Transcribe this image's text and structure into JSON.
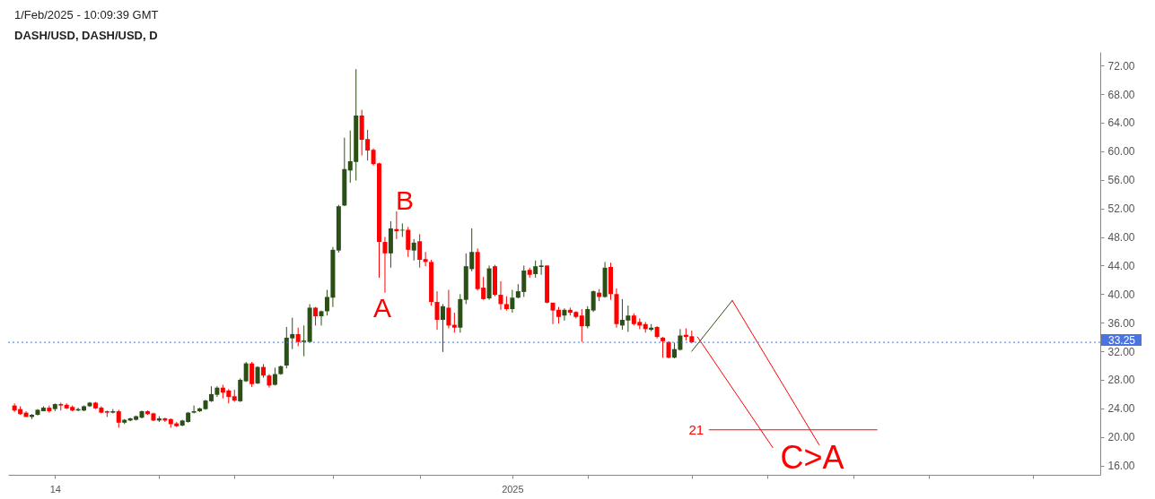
{
  "chart_data": {
    "type": "candlestick",
    "title": "DASH/USD, DASH/USD, D",
    "x": [
      "2024-10-07",
      "2024-10-08",
      "2024-10-09",
      "2024-10-10",
      "2024-10-11",
      "2024-10-12",
      "2024-10-13",
      "2024-10-14",
      "2024-10-15",
      "2024-10-16",
      "2024-10-17",
      "2024-10-18",
      "2024-10-19",
      "2024-10-20",
      "2024-10-21",
      "2024-10-22",
      "2024-10-23",
      "2024-10-24",
      "2024-10-25",
      "2024-10-26",
      "2024-10-27",
      "2024-10-28",
      "2024-10-29",
      "2024-10-30",
      "2024-10-31",
      "2024-11-01",
      "2024-11-02",
      "2024-11-03",
      "2024-11-04",
      "2024-11-05",
      "2024-11-06",
      "2024-11-07",
      "2024-11-08",
      "2024-11-09",
      "2024-11-10",
      "2024-11-11",
      "2024-11-12",
      "2024-11-13",
      "2024-11-14",
      "2024-11-15",
      "2024-11-16",
      "2024-11-17",
      "2024-11-18",
      "2024-11-19",
      "2024-11-20",
      "2024-11-21",
      "2024-11-22",
      "2024-11-23",
      "2024-11-24",
      "2024-11-25",
      "2024-11-26",
      "2024-11-27",
      "2024-11-28",
      "2024-11-29",
      "2024-11-30",
      "2024-12-01",
      "2024-12-02",
      "2024-12-03",
      "2024-12-04",
      "2024-12-05",
      "2024-12-06",
      "2024-12-07",
      "2024-12-08",
      "2024-12-09",
      "2024-12-10",
      "2024-12-11",
      "2024-12-12",
      "2024-12-13",
      "2024-12-14",
      "2024-12-15",
      "2024-12-16",
      "2024-12-17",
      "2024-12-18",
      "2024-12-19",
      "2024-12-20",
      "2024-12-21",
      "2024-12-22",
      "2024-12-23",
      "2024-12-24",
      "2024-12-25",
      "2024-12-26",
      "2024-12-27",
      "2024-12-28",
      "2024-12-29",
      "2024-12-30",
      "2024-12-31",
      "2025-01-01",
      "2025-01-02",
      "2025-01-03",
      "2025-01-04",
      "2025-01-05",
      "2025-01-06",
      "2025-01-07",
      "2025-01-08",
      "2025-01-09",
      "2025-01-10",
      "2025-01-11",
      "2025-01-12",
      "2025-01-13",
      "2025-01-14",
      "2025-01-15",
      "2025-01-16",
      "2025-01-17",
      "2025-01-18",
      "2025-01-19",
      "2025-01-20",
      "2025-01-21",
      "2025-01-22",
      "2025-01-23",
      "2025-01-24",
      "2025-01-25",
      "2025-01-26",
      "2025-01-27",
      "2025-01-28",
      "2025-01-29",
      "2025-01-30",
      "2025-01-31",
      "2025-02-01"
    ],
    "ohlc": [
      [
        24.4,
        24.7,
        23.5,
        23.7
      ],
      [
        23.9,
        24.3,
        23.1,
        23.2
      ],
      [
        23.4,
        23.6,
        22.8,
        22.8
      ],
      [
        22.8,
        23.2,
        22.5,
        23.1
      ],
      [
        23.1,
        23.9,
        23.0,
        23.8
      ],
      [
        23.6,
        24.3,
        23.6,
        24.1
      ],
      [
        24.1,
        24.4,
        23.4,
        23.6
      ],
      [
        23.9,
        24.7,
        23.6,
        24.6
      ],
      [
        24.6,
        24.8,
        23.7,
        24.4
      ],
      [
        24.5,
        24.7,
        23.9,
        24.0
      ],
      [
        24.2,
        24.4,
        23.6,
        23.7
      ],
      [
        23.7,
        24.1,
        23.6,
        23.9
      ],
      [
        23.7,
        24.4,
        23.6,
        24.3
      ],
      [
        24.3,
        24.9,
        24.2,
        24.8
      ],
      [
        24.8,
        24.9,
        23.9,
        24.0
      ],
      [
        24.1,
        24.3,
        23.3,
        23.4
      ],
      [
        23.6,
        23.7,
        22.8,
        23.4
      ],
      [
        23.4,
        23.9,
        23.3,
        23.6
      ],
      [
        23.6,
        23.8,
        21.3,
        22.0
      ],
      [
        22.0,
        22.5,
        21.8,
        22.4
      ],
      [
        22.3,
        22.7,
        22.2,
        22.6
      ],
      [
        22.4,
        23.0,
        22.3,
        22.9
      ],
      [
        22.7,
        23.7,
        22.6,
        23.6
      ],
      [
        23.6,
        23.7,
        23.1,
        23.2
      ],
      [
        23.3,
        23.4,
        22.2,
        22.3
      ],
      [
        22.3,
        22.9,
        22.1,
        22.6
      ],
      [
        22.6,
        22.7,
        22.1,
        22.3
      ],
      [
        22.5,
        22.6,
        21.3,
        21.8
      ],
      [
        21.9,
        22.1,
        21.4,
        21.5
      ],
      [
        21.6,
        22.4,
        21.5,
        22.3
      ],
      [
        22.1,
        23.5,
        22.0,
        23.4
      ],
      [
        23.4,
        24.4,
        23.3,
        23.6
      ],
      [
        23.6,
        24.1,
        23.5,
        24.0
      ],
      [
        23.9,
        25.2,
        23.8,
        25.1
      ],
      [
        25.0,
        27.1,
        24.9,
        26.0
      ],
      [
        25.9,
        27.1,
        25.6,
        26.9
      ],
      [
        26.9,
        27.3,
        25.4,
        26.2
      ],
      [
        26.5,
        26.7,
        24.7,
        25.6
      ],
      [
        25.7,
        26.6,
        24.9,
        25.1
      ],
      [
        25.0,
        28.2,
        24.9,
        28.0
      ],
      [
        27.8,
        30.5,
        27.7,
        30.3
      ],
      [
        30.3,
        30.5,
        27.0,
        27.4
      ],
      [
        27.5,
        29.9,
        27.4,
        29.8
      ],
      [
        29.8,
        30.2,
        28.3,
        28.6
      ],
      [
        28.6,
        28.8,
        26.9,
        27.2
      ],
      [
        27.3,
        29.7,
        27.2,
        28.8
      ],
      [
        28.8,
        30.0,
        28.7,
        29.9
      ],
      [
        30.0,
        35.4,
        29.6,
        33.9
      ],
      [
        33.8,
        36.7,
        32.3,
        34.4
      ],
      [
        34.4,
        35.3,
        32.7,
        33.3
      ],
      [
        33.3,
        35.6,
        31.3,
        33.5
      ],
      [
        33.3,
        38.6,
        33.2,
        38.1
      ],
      [
        38.1,
        38.2,
        35.6,
        36.9
      ],
      [
        36.9,
        37.7,
        35.6,
        37.6
      ],
      [
        37.6,
        40.6,
        37.0,
        39.6
      ],
      [
        39.5,
        46.6,
        38.2,
        46.2
      ],
      [
        46.1,
        52.5,
        45.8,
        52.3
      ],
      [
        52.4,
        61.9,
        52.3,
        57.5
      ],
      [
        57.3,
        62.9,
        55.6,
        58.6
      ],
      [
        58.5,
        71.5,
        55.9,
        65.0
      ],
      [
        65.0,
        65.8,
        59.4,
        61.6
      ],
      [
        61.7,
        63.0,
        58.7,
        60.1
      ],
      [
        60.2,
        60.4,
        58.0,
        58.2
      ],
      [
        58.3,
        58.4,
        42.3,
        47.3
      ],
      [
        47.3,
        48.0,
        40.2,
        45.7
      ],
      [
        45.7,
        50.2,
        43.7,
        49.2
      ],
      [
        49.1,
        51.6,
        47.7,
        48.8
      ],
      [
        48.9,
        49.9,
        48.0,
        49.0
      ],
      [
        49.0,
        49.4,
        45.2,
        46.2
      ],
      [
        46.1,
        47.7,
        44.7,
        47.2
      ],
      [
        47.4,
        48.4,
        43.7,
        44.8
      ],
      [
        44.9,
        45.9,
        43.9,
        44.5
      ],
      [
        44.5,
        44.8,
        38.4,
        38.9
      ],
      [
        38.9,
        40.4,
        35.0,
        36.4
      ],
      [
        36.4,
        38.6,
        31.9,
        38.3
      ],
      [
        38.1,
        40.6,
        35.2,
        35.6
      ],
      [
        35.7,
        37.4,
        34.6,
        35.3
      ],
      [
        35.3,
        40.0,
        34.6,
        39.3
      ],
      [
        39.2,
        45.7,
        38.6,
        43.9
      ],
      [
        43.5,
        49.2,
        43.2,
        45.9
      ],
      [
        45.9,
        46.4,
        40.5,
        40.7
      ],
      [
        40.9,
        42.4,
        39.2,
        39.3
      ],
      [
        39.4,
        44.0,
        39.2,
        43.6
      ],
      [
        43.9,
        44.1,
        39.7,
        39.9
      ],
      [
        39.9,
        41.8,
        37.8,
        38.6
      ],
      [
        38.6,
        39.7,
        37.7,
        37.9
      ],
      [
        37.9,
        40.6,
        37.4,
        39.5
      ],
      [
        39.5,
        41.4,
        39.4,
        40.4
      ],
      [
        40.3,
        44.0,
        39.6,
        43.3
      ],
      [
        43.4,
        43.7,
        42.3,
        42.7
      ],
      [
        42.8,
        44.7,
        42.3,
        43.9
      ],
      [
        43.8,
        44.8,
        42.7,
        44.0
      ],
      [
        44.0,
        44.0,
        38.7,
        38.8
      ],
      [
        38.8,
        38.8,
        35.8,
        37.7
      ],
      [
        37.8,
        38.2,
        35.9,
        36.8
      ],
      [
        37.0,
        38.0,
        36.3,
        37.8
      ],
      [
        37.8,
        38.1,
        37.0,
        37.4
      ],
      [
        37.5,
        37.6,
        36.6,
        36.8
      ],
      [
        37.0,
        37.9,
        33.3,
        35.5
      ],
      [
        35.5,
        38.3,
        35.2,
        37.9
      ],
      [
        37.7,
        40.5,
        37.5,
        40.4
      ],
      [
        40.2,
        40.7,
        39.0,
        39.6
      ],
      [
        39.6,
        44.5,
        39.5,
        43.7
      ],
      [
        43.8,
        44.4,
        39.2,
        40.0
      ],
      [
        40.0,
        40.8,
        35.3,
        35.8
      ],
      [
        35.6,
        39.3,
        35.0,
        36.4
      ],
      [
        36.3,
        38.4,
        34.7,
        37.0
      ],
      [
        37.0,
        37.3,
        35.6,
        35.8
      ],
      [
        36.1,
        36.6,
        35.1,
        35.6
      ],
      [
        35.8,
        36.1,
        34.6,
        35.1
      ],
      [
        35.0,
        35.8,
        34.8,
        35.3
      ],
      [
        35.4,
        35.5,
        33.8,
        34.0
      ],
      [
        33.9,
        34.0,
        31.1,
        33.4
      ],
      [
        33.3,
        33.4,
        31.0,
        31.1
      ],
      [
        31.1,
        33.2,
        31.0,
        32.3
      ],
      [
        32.2,
        35.1,
        32.1,
        34.2
      ],
      [
        34.3,
        35.2,
        33.5,
        34.0
      ],
      [
        34.1,
        34.9,
        33.1,
        33.25
      ]
    ],
    "colors": [
      "#ff0000",
      "#ff0000",
      "#ff0000",
      "#2b5016",
      "#2b5016",
      "#2b5016",
      "#ff0000",
      "#2b5016",
      "#ff0000",
      "#ff0000",
      "#ff0000",
      "#2b5016",
      "#2b5016",
      "#2b5016",
      "#ff0000",
      "#ff0000",
      "#ff0000",
      "#2b5016",
      "#ff0000",
      "#2b5016",
      "#2b5016",
      "#2b5016",
      "#2b5016",
      "#ff0000",
      "#ff0000",
      "#2b5016",
      "#ff0000",
      "#ff0000",
      "#ff0000",
      "#2b5016",
      "#2b5016",
      "#2b5016",
      "#2b5016",
      "#2b5016",
      "#2b5016",
      "#2b5016",
      "#ff0000",
      "#ff0000",
      "#ff0000",
      "#2b5016",
      "#2b5016",
      "#ff0000",
      "#2b5016",
      "#ff0000",
      "#ff0000",
      "#2b5016",
      "#2b5016",
      "#2b5016",
      "#2b5016",
      "#ff0000",
      "#2b5016",
      "#2b5016",
      "#ff0000",
      "#2b5016",
      "#2b5016",
      "#2b5016",
      "#2b5016",
      "#2b5016",
      "#2b5016",
      "#2b5016",
      "#ff0000",
      "#ff0000",
      "#ff0000",
      "#ff0000",
      "#ff0000",
      "#2b5016",
      "#ff0000",
      "#2b5016",
      "#ff0000",
      "#2b5016",
      "#ff0000",
      "#ff0000",
      "#ff0000",
      "#ff0000",
      "#2b5016",
      "#ff0000",
      "#ff0000",
      "#2b5016",
      "#2b5016",
      "#2b5016",
      "#ff0000",
      "#ff0000",
      "#2b5016",
      "#ff0000",
      "#ff0000",
      "#ff0000",
      "#2b5016",
      "#2b5016",
      "#2b5016",
      "#ff0000",
      "#2b5016",
      "#2b5016",
      "#ff0000",
      "#ff0000",
      "#ff0000",
      "#2b5016",
      "#ff0000",
      "#ff0000",
      "#ff0000",
      "#2b5016",
      "#2b5016",
      "#ff0000",
      "#2b5016",
      "#ff0000",
      "#ff0000",
      "#2b5016",
      "#2b5016",
      "#ff0000",
      "#ff0000",
      "#ff0000",
      "#2b5016",
      "#ff0000",
      "#ff0000",
      "#ff0000",
      "#2b5016",
      "#2b5016",
      "#ff0000",
      "#ff0000"
    ],
    "series": [
      {
        "type": "line",
        "color": "#2b5016",
        "x": [
          "2025-02-01",
          "2025-02-08"
        ],
        "values": [
          32.0,
          39.1
        ]
      },
      {
        "type": "line",
        "color": "#ff0000",
        "x": [
          "2025-02-02",
          "2025-02-15"
        ],
        "values": [
          34.0,
          18.5
        ]
      },
      {
        "type": "line",
        "color": "#ff0000",
        "x": [
          "2025-02-08",
          "2025-02-23"
        ],
        "values": [
          39.1,
          18.9
        ]
      },
      {
        "type": "line",
        "name": "21",
        "color": "#ff0000",
        "x": [
          "2025-02-04",
          "2025-03-05"
        ],
        "values": [
          21,
          21
        ]
      }
    ],
    "xlim": [
      "2024-10-06T16:00",
      "2025-04-11T19:00"
    ],
    "xticks": [
      {
        "value": "2024-10-14",
        "label": "14"
      },
      {
        "value": "2024-11-01",
        "label": null
      },
      {
        "value": "2024-11-14",
        "label": null
      },
      {
        "value": "2024-12-01",
        "label": null
      },
      {
        "value": "2024-12-16",
        "label": null
      },
      {
        "value": "2025-01-01",
        "label": "2025"
      },
      {
        "value": "2025-01-14",
        "label": null
      },
      {
        "value": "2025-02-01",
        "label": null
      },
      {
        "value": "2025-02-14",
        "label": null
      },
      {
        "value": "2025-03-01",
        "label": null
      },
      {
        "value": "2025-03-14",
        "label": null
      },
      {
        "value": "2025-04-01",
        "label": null
      }
    ],
    "ylim": [
      14.7,
      73.9
    ],
    "yticks": [
      {
        "value": 16,
        "label": "16.00"
      },
      {
        "value": 20,
        "label": "20.00"
      },
      {
        "value": 24,
        "label": "24.00"
      },
      {
        "value": 28,
        "label": "28.00"
      },
      {
        "value": 32,
        "label": "32.00"
      },
      {
        "value": 36,
        "label": "36.00"
      },
      {
        "value": 40,
        "label": "40.00"
      },
      {
        "value": 44,
        "label": "44.00"
      },
      {
        "value": 48,
        "label": "48.00"
      },
      {
        "value": 52,
        "label": "52.00"
      },
      {
        "value": 56,
        "label": "56.00"
      },
      {
        "value": 60,
        "label": "60.00"
      },
      {
        "value": 64,
        "label": "64.00"
      },
      {
        "value": 68,
        "label": "68.00"
      },
      {
        "value": 72,
        "label": "72.00"
      }
    ],
    "ref_lines": [
      {
        "axis": "y",
        "value": 33.25,
        "label": "33.25",
        "color": "#4a74e0",
        "line_style": "dotted"
      }
    ],
    "annotations": [
      "1/Feb/2025 - 10:09:39 GMT",
      "A",
      "B",
      "C>A"
    ]
  }
}
